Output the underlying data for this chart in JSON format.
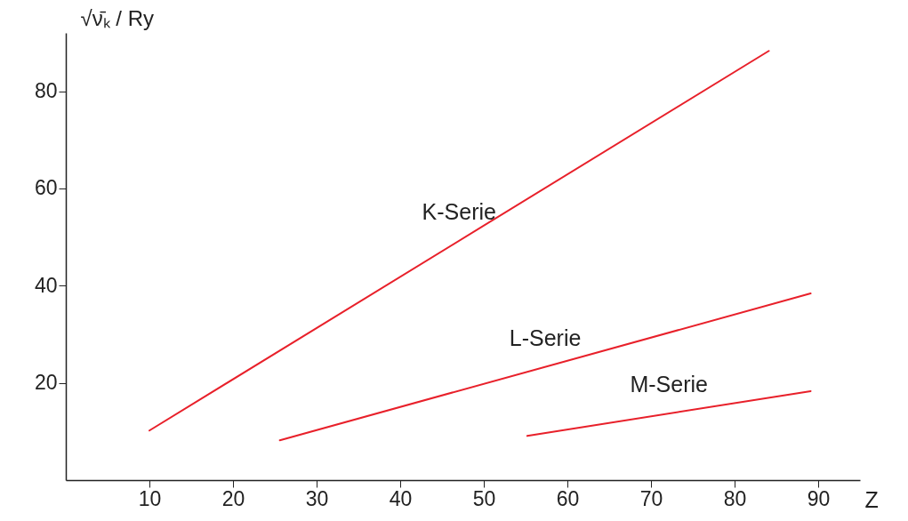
{
  "chart_data": {
    "type": "line",
    "xlabel": "Z",
    "ylabel": "√ν̄ₖ / Ry",
    "xlim": [
      0,
      95
    ],
    "ylim": [
      0,
      92
    ],
    "xticks": [
      10,
      20,
      30,
      40,
      50,
      60,
      70,
      80,
      90
    ],
    "yticks": [
      20,
      40,
      60,
      80
    ],
    "grid": false,
    "legend": false,
    "marker": "none",
    "line_style": "solid",
    "series": [
      {
        "name": "K-Serie",
        "color": "#e8202a",
        "x": [
          10,
          84.1
        ],
        "values": [
          10.2,
          88.3
        ]
      },
      {
        "name": "L-Serie",
        "color": "#e8202a",
        "x": [
          25.6,
          89.1
        ],
        "values": [
          8.2,
          38.4
        ]
      },
      {
        "name": "M-Serie",
        "color": "#e8202a",
        "x": [
          55.2,
          89.1
        ],
        "values": [
          9.1,
          18.3
        ]
      }
    ]
  }
}
